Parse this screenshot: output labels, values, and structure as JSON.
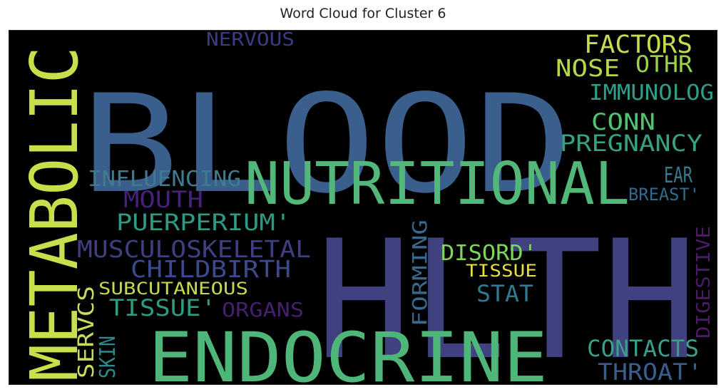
{
  "title": "Word Cloud for Cluster 6",
  "chart_data": {
    "type": "wordcloud",
    "background": "#000000",
    "words": [
      {
        "text": "BLOOD",
        "color": "#3b5f8c"
      },
      {
        "text": "HLTH",
        "color": "#40427f"
      },
      {
        "text": "NUTRITIONAL",
        "color": "#53b77a"
      },
      {
        "text": "ENDOCRINE",
        "color": "#4fb679"
      },
      {
        "text": "METABOLIC",
        "color": "#c6df4a"
      },
      {
        "text": "MUSCULOSKELETAL",
        "color": "#3f3e80"
      },
      {
        "text": "CHILDBIRTH",
        "color": "#3b4a8a"
      },
      {
        "text": "PUERPERIUM'",
        "color": "#2e9a84"
      },
      {
        "text": "INFLUENCING",
        "color": "#3f7b8c"
      },
      {
        "text": "MOUTH",
        "color": "#46207a"
      },
      {
        "text": "SUBCUTANEOUS",
        "color": "#c5d94e"
      },
      {
        "text": "TISSUE'",
        "color": "#2f9b83"
      },
      {
        "text": "ORGANS",
        "color": "#44206d"
      },
      {
        "text": "SKIN",
        "color": "#2e8a8a"
      },
      {
        "text": "SERVCS",
        "color": "#c6dc5a"
      },
      {
        "text": "FORMING",
        "color": "#38698d"
      },
      {
        "text": "DISORD'",
        "color": "#7fd45a"
      },
      {
        "text": "TISSUE",
        "color": "#e8df3a"
      },
      {
        "text": "STAT",
        "color": "#2f7a8e"
      },
      {
        "text": "CONTACTS",
        "color": "#3a9f88"
      },
      {
        "text": "THROAT'",
        "color": "#3a5e8c"
      },
      {
        "text": "DIGESTIVE",
        "color": "#4a1d63"
      },
      {
        "text": "EAR",
        "color": "#36798e"
      },
      {
        "text": "BREAST'",
        "color": "#2f6c8c"
      },
      {
        "text": "PREGNANCY",
        "color": "#38a082"
      },
      {
        "text": "CONN",
        "color": "#51c26e"
      },
      {
        "text": "IMMUNOLOG",
        "color": "#2f9d88"
      },
      {
        "text": "NOSE",
        "color": "#b5d84a"
      },
      {
        "text": "OTHR",
        "color": "#9ad24c"
      },
      {
        "text": "FACTORS",
        "color": "#c3dd4e"
      },
      {
        "text": "NERVOUS",
        "color": "#3c3c80"
      }
    ]
  }
}
